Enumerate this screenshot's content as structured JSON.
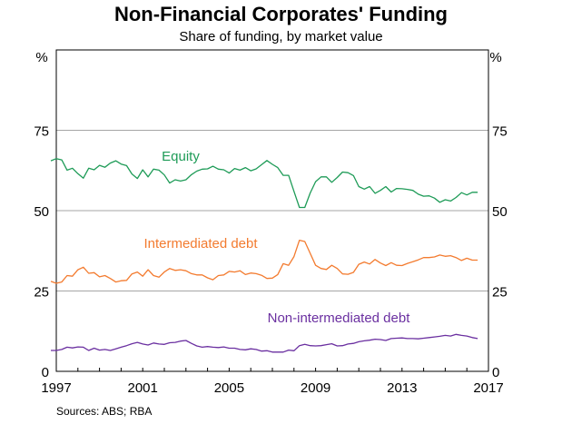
{
  "chart_data": {
    "type": "line",
    "title": "Non-Financial Corporates' Funding",
    "subtitle": "Share of funding, by market value",
    "ylabel_left": "%",
    "ylabel_right": "%",
    "ylim": [
      0,
      100
    ],
    "yticks": [
      0,
      25,
      50,
      75
    ],
    "xlim": [
      1997,
      2017
    ],
    "xticks": [
      1997,
      2001,
      2005,
      2009,
      2013,
      2017
    ],
    "grid": true,
    "source": "Sources:   ABS; RBA",
    "colors": {
      "equity": "#1e9b57",
      "intermediated": "#f37b2f",
      "non_intermediated": "#6a2fa0"
    },
    "series": [
      {
        "name": "Equity",
        "key": "equity",
        "x": [
          1996.75,
          1997.0,
          1997.25,
          1997.5,
          1997.75,
          1998.0,
          1998.25,
          1998.5,
          1998.75,
          1999.0,
          1999.25,
          1999.5,
          1999.75,
          2000.0,
          2000.25,
          2000.5,
          2000.75,
          2001.0,
          2001.25,
          2001.5,
          2001.75,
          2002.0,
          2002.25,
          2002.5,
          2002.75,
          2003.0,
          2003.25,
          2003.5,
          2003.75,
          2004.0,
          2004.25,
          2004.5,
          2004.75,
          2005.0,
          2005.25,
          2005.5,
          2005.75,
          2006.0,
          2006.25,
          2006.5,
          2006.75,
          2007.0,
          2007.25,
          2007.5,
          2007.75,
          2008.0,
          2008.25,
          2008.5,
          2008.75,
          2009.0,
          2009.25,
          2009.5,
          2009.75,
          2010.0,
          2010.25,
          2010.5,
          2010.75,
          2011.0,
          2011.25,
          2011.5,
          2011.75,
          2012.0,
          2012.25,
          2012.5,
          2012.75,
          2013.0,
          2013.25,
          2013.5,
          2013.75,
          2014.0,
          2014.25,
          2014.5,
          2014.75,
          2015.0,
          2015.25,
          2015.5,
          2015.75,
          2016.0,
          2016.25,
          2016.5
        ],
        "values": [
          65.5,
          66.2,
          65.8,
          62.6,
          63.2,
          61.5,
          60.1,
          63.2,
          62.7,
          64.1,
          63.5,
          64.8,
          65.5,
          64.5,
          64.0,
          61.4,
          60.0,
          62.7,
          60.5,
          62.9,
          62.6,
          61.1,
          58.6,
          59.6,
          59.2,
          59.6,
          61.2,
          62.3,
          62.9,
          63.0,
          63.8,
          62.9,
          62.7,
          61.7,
          63.1,
          62.6,
          63.4,
          62.4,
          63.0,
          64.3,
          65.6,
          64.4,
          63.4,
          61.0,
          61.0,
          56.0,
          51.0,
          51.0,
          55.5,
          59.0,
          60.5,
          60.5,
          58.8,
          60.3,
          62.0,
          61.8,
          60.9,
          57.5,
          56.7,
          57.5,
          55.4,
          56.3,
          57.5,
          55.8,
          56.9,
          56.8,
          56.6,
          56.3,
          55.1,
          54.5,
          54.6,
          53.9,
          52.6,
          53.4,
          53.0,
          54.1,
          55.6,
          54.9,
          55.7,
          55.7
        ]
      },
      {
        "name": "Intermediated debt",
        "key": "intermediated",
        "x": [
          1996.75,
          1997.0,
          1997.25,
          1997.5,
          1997.75,
          1998.0,
          1998.25,
          1998.5,
          1998.75,
          1999.0,
          1999.25,
          1999.5,
          1999.75,
          2000.0,
          2000.25,
          2000.5,
          2000.75,
          2001.0,
          2001.25,
          2001.5,
          2001.75,
          2002.0,
          2002.25,
          2002.5,
          2002.75,
          2003.0,
          2003.25,
          2003.5,
          2003.75,
          2004.0,
          2004.25,
          2004.5,
          2004.75,
          2005.0,
          2005.25,
          2005.5,
          2005.75,
          2006.0,
          2006.25,
          2006.5,
          2006.75,
          2007.0,
          2007.25,
          2007.5,
          2007.75,
          2008.0,
          2008.25,
          2008.5,
          2008.75,
          2009.0,
          2009.25,
          2009.5,
          2009.75,
          2010.0,
          2010.25,
          2010.5,
          2010.75,
          2011.0,
          2011.25,
          2011.5,
          2011.75,
          2012.0,
          2012.25,
          2012.5,
          2012.75,
          2013.0,
          2013.25,
          2013.5,
          2013.75,
          2014.0,
          2014.25,
          2014.5,
          2014.75,
          2015.0,
          2015.25,
          2015.5,
          2015.75,
          2016.0,
          2016.25,
          2016.5
        ],
        "values": [
          28.0,
          27.4,
          27.8,
          29.8,
          29.6,
          31.6,
          32.4,
          30.5,
          30.7,
          29.4,
          29.8,
          28.9,
          27.8,
          28.2,
          28.3,
          30.3,
          30.9,
          29.6,
          31.6,
          29.8,
          29.3,
          30.9,
          32.0,
          31.4,
          31.6,
          31.3,
          30.4,
          30.0,
          30.0,
          29.1,
          28.5,
          29.8,
          30.0,
          31.1,
          30.9,
          31.3,
          30.1,
          30.6,
          30.4,
          29.9,
          28.9,
          29.0,
          30.1,
          33.5,
          33.0,
          35.7,
          40.8,
          40.4,
          36.7,
          33.0,
          32.0,
          31.7,
          33.0,
          32.0,
          30.3,
          30.2,
          30.8,
          33.3,
          34.0,
          33.4,
          34.8,
          33.7,
          32.9,
          33.8,
          33.0,
          32.9,
          33.6,
          34.1,
          34.7,
          35.4,
          35.4,
          35.6,
          36.2,
          35.8,
          36.0,
          35.4,
          34.5,
          35.2,
          34.6,
          34.6
        ]
      },
      {
        "name": "Non-intermediated debt",
        "key": "non_intermediated",
        "x": [
          1996.75,
          1997.0,
          1997.25,
          1997.5,
          1997.75,
          1998.0,
          1998.25,
          1998.5,
          1998.75,
          1999.0,
          1999.25,
          1999.5,
          1999.75,
          2000.0,
          2000.25,
          2000.5,
          2000.75,
          2001.0,
          2001.25,
          2001.5,
          2001.75,
          2002.0,
          2002.25,
          2002.5,
          2002.75,
          2003.0,
          2003.25,
          2003.5,
          2003.75,
          2004.0,
          2004.25,
          2004.5,
          2004.75,
          2005.0,
          2005.25,
          2005.5,
          2005.75,
          2006.0,
          2006.25,
          2006.5,
          2006.75,
          2007.0,
          2007.25,
          2007.5,
          2007.75,
          2008.0,
          2008.25,
          2008.5,
          2008.75,
          2009.0,
          2009.25,
          2009.5,
          2009.75,
          2010.0,
          2010.25,
          2010.5,
          2010.75,
          2011.0,
          2011.25,
          2011.5,
          2011.75,
          2012.0,
          2012.25,
          2012.5,
          2012.75,
          2013.0,
          2013.25,
          2013.5,
          2013.75,
          2014.0,
          2014.25,
          2014.5,
          2014.75,
          2015.0,
          2015.25,
          2015.5,
          2015.75,
          2016.0,
          2016.25,
          2016.5
        ],
        "values": [
          6.5,
          6.5,
          6.8,
          7.5,
          7.3,
          7.6,
          7.5,
          6.5,
          7.2,
          6.6,
          6.8,
          6.5,
          7.0,
          7.5,
          8.0,
          8.6,
          9.0,
          8.5,
          8.2,
          8.8,
          8.5,
          8.4,
          8.9,
          9.0,
          9.4,
          9.6,
          8.7,
          7.9,
          7.5,
          7.7,
          7.5,
          7.4,
          7.6,
          7.2,
          7.2,
          6.8,
          6.7,
          7.0,
          6.8,
          6.3,
          6.4,
          6.0,
          6.0,
          6.0,
          6.6,
          6.4,
          8.0,
          8.4,
          8.0,
          7.9,
          8.0,
          8.3,
          8.6,
          7.9,
          8.0,
          8.5,
          8.7,
          9.2,
          9.5,
          9.7,
          10.0,
          9.9,
          9.6,
          10.2,
          10.3,
          10.4,
          10.2,
          10.2,
          10.1,
          10.3,
          10.5,
          10.7,
          10.9,
          11.2,
          11.0,
          11.5,
          11.2,
          11.0,
          10.5,
          10.2
        ]
      }
    ]
  }
}
